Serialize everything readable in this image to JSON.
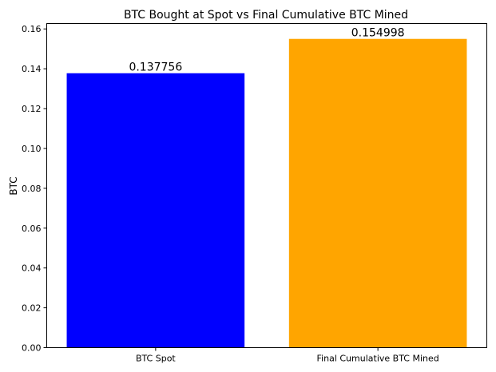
{
  "chart_data": {
    "type": "bar",
    "title": "BTC Bought at Spot vs Final Cumulative BTC Mined",
    "xlabel": "",
    "ylabel": "BTC",
    "categories": [
      "BTC Spot",
      "Final Cumulative BTC Mined"
    ],
    "values": [
      0.137756,
      0.154998
    ],
    "data_labels": [
      "0.137756",
      "0.154998"
    ],
    "colors": [
      "#0000ff",
      "#ffa500"
    ],
    "ylim": [
      0,
      0.1627
    ],
    "yticks": [
      0.0,
      0.02,
      0.04,
      0.06,
      0.08,
      0.1,
      0.12,
      0.14,
      0.16
    ],
    "ytick_labels": [
      "0.00",
      "0.02",
      "0.04",
      "0.06",
      "0.08",
      "0.10",
      "0.12",
      "0.14",
      "0.16"
    ],
    "grid": false,
    "legend": "none"
  }
}
